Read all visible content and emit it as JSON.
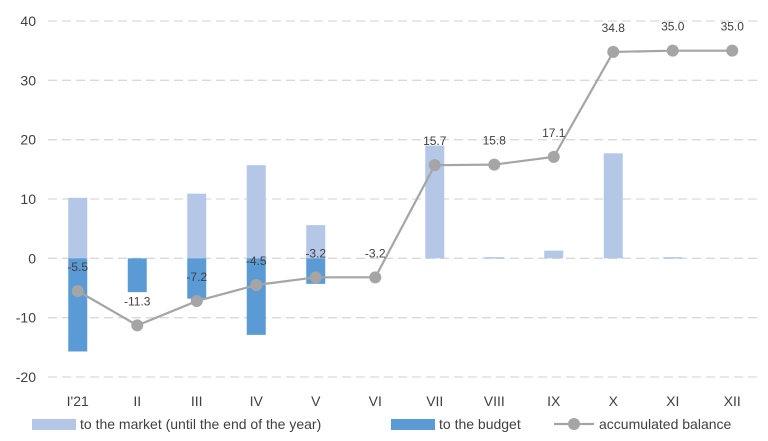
{
  "chart_data": {
    "type": "bar",
    "title": "",
    "xlabel": "",
    "ylabel": "",
    "ylim": [
      -20,
      40
    ],
    "yticks": [
      -20,
      -10,
      0,
      10,
      20,
      30,
      40
    ],
    "grid": true,
    "legend_position": "bottom",
    "categories": [
      "I'21",
      "II",
      "III",
      "IV",
      "V",
      "VI",
      "VII",
      "VIII",
      "IX",
      "X",
      "XI",
      "XII"
    ],
    "series": [
      {
        "name": "to the market (until the end of the year)",
        "type": "bar",
        "color": "#b4c7e7",
        "values": [
          10.2,
          0,
          10.9,
          15.7,
          5.6,
          0,
          19.0,
          0.2,
          1.3,
          17.7,
          0.2,
          0
        ]
      },
      {
        "name": "to the budget",
        "type": "bar",
        "color": "#5b9bd5",
        "values": [
          -15.7,
          -5.7,
          -6.8,
          -12.9,
          -4.3,
          0,
          0,
          0,
          0,
          0,
          0,
          0
        ]
      },
      {
        "name": "accumulated balance",
        "type": "line",
        "color": "#a5a5a5",
        "values": [
          -5.5,
          -11.3,
          -7.2,
          -4.5,
          -3.2,
          -3.2,
          15.7,
          15.8,
          17.1,
          34.8,
          35.0,
          35.0
        ],
        "labels": [
          "-5.5",
          "-11.3",
          "-7.2",
          "-4.5",
          "-3.2",
          "-3.2",
          "15.7",
          "15.8",
          "17.1",
          "34.8",
          "35.0",
          "35.0"
        ]
      }
    ]
  }
}
